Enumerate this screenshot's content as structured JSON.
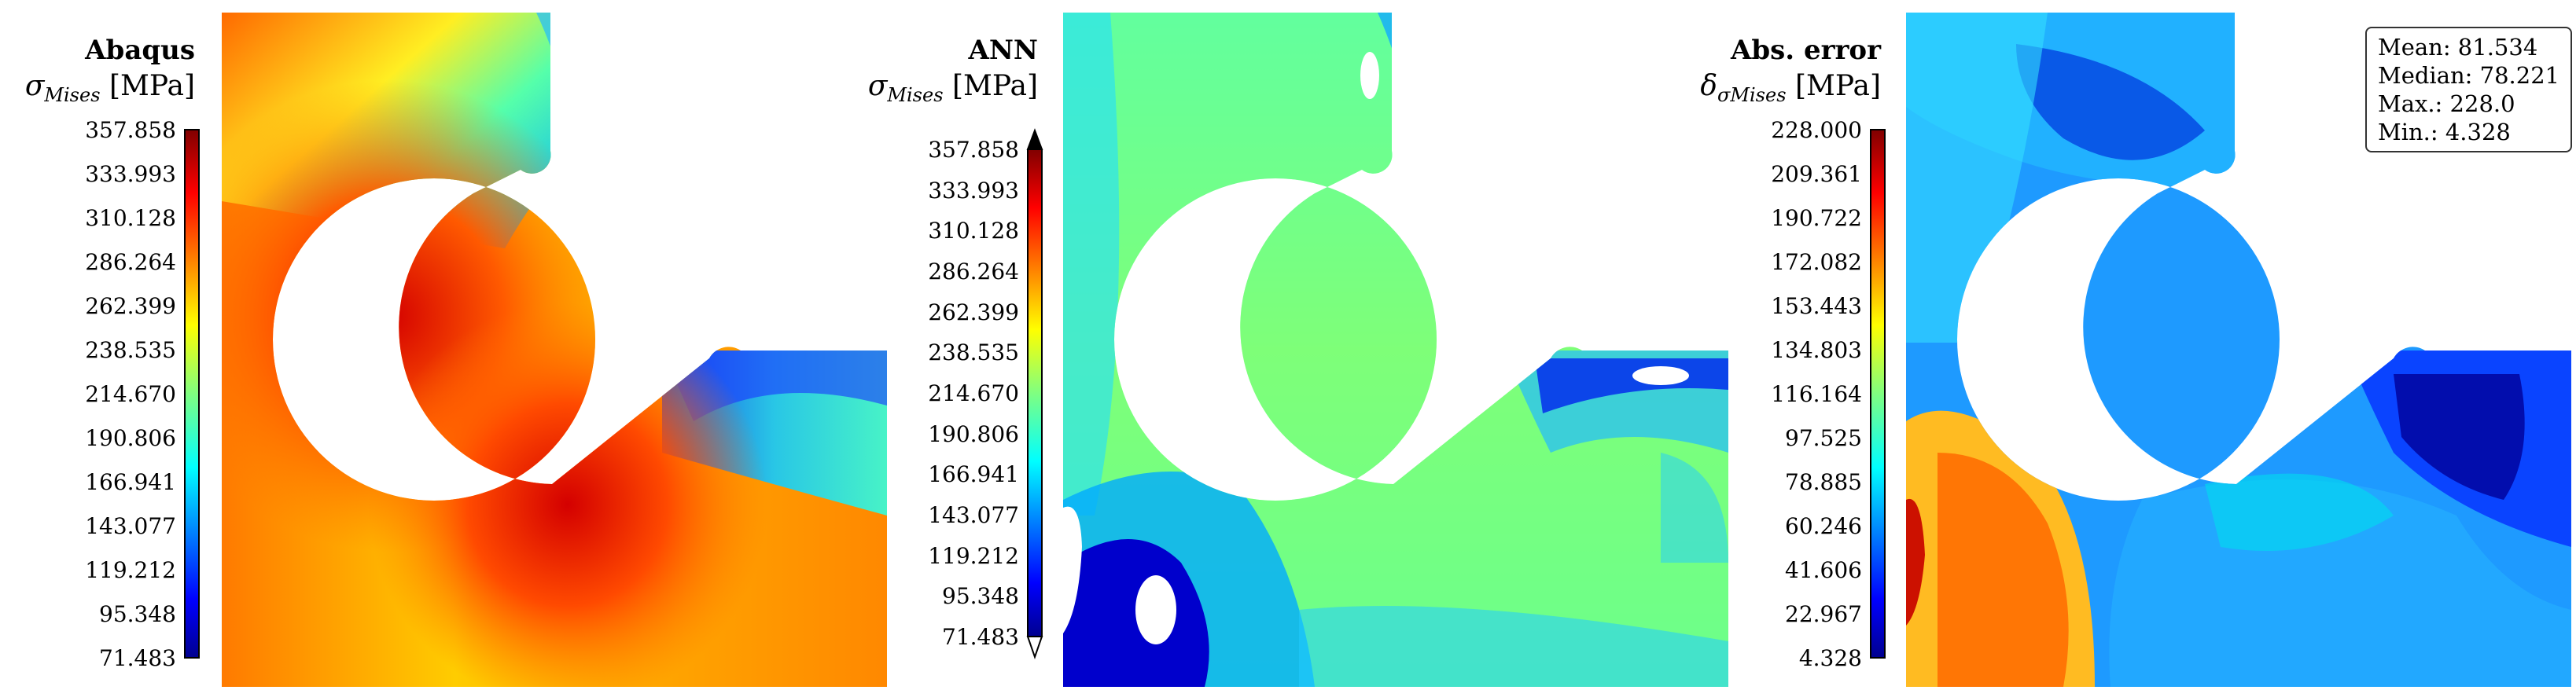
{
  "chart_data": [
    {
      "type": "heatmap",
      "title": "Abaqus",
      "quantity": {
        "symbol": "σ",
        "subscript": "Mises",
        "unit": "[MPa]"
      },
      "colorbar": {
        "colormap": "jet",
        "min": 71.483,
        "max": 357.858,
        "extend": "none",
        "ticks": [
          "357.858",
          "333.993",
          "310.128",
          "286.264",
          "262.399",
          "238.535",
          "214.670",
          "190.806",
          "166.941",
          "143.077",
          "119.212",
          "95.348",
          "71.483"
        ]
      }
    },
    {
      "type": "heatmap",
      "title": "ANN",
      "quantity": {
        "symbol": "σ",
        "subscript": "Mises",
        "unit": "[MPa]"
      },
      "colorbar": {
        "colormap": "jet",
        "min": 71.483,
        "max": 357.858,
        "extend": "both",
        "ticks": [
          "357.858",
          "333.993",
          "310.128",
          "286.264",
          "262.399",
          "238.535",
          "214.670",
          "190.806",
          "166.941",
          "143.077",
          "119.212",
          "95.348",
          "71.483"
        ]
      }
    },
    {
      "type": "heatmap",
      "title": "Abs. error",
      "quantity": {
        "symbol": "δ",
        "subsymbol": "σ",
        "subscript": "Mises",
        "unit": "[MPa]"
      },
      "colorbar": {
        "colormap": "jet",
        "min": 4.328,
        "max": 228.0,
        "extend": "none",
        "ticks": [
          "228.000",
          "209.361",
          "190.722",
          "172.082",
          "153.443",
          "134.803",
          "116.164",
          "97.525",
          "78.885",
          "60.246",
          "41.606",
          "22.967",
          "4.328"
        ]
      },
      "stats": [
        "Mean: 81.534",
        "Median: 78.221",
        "Max.: 228.0",
        "Min.: 4.328"
      ]
    }
  ]
}
